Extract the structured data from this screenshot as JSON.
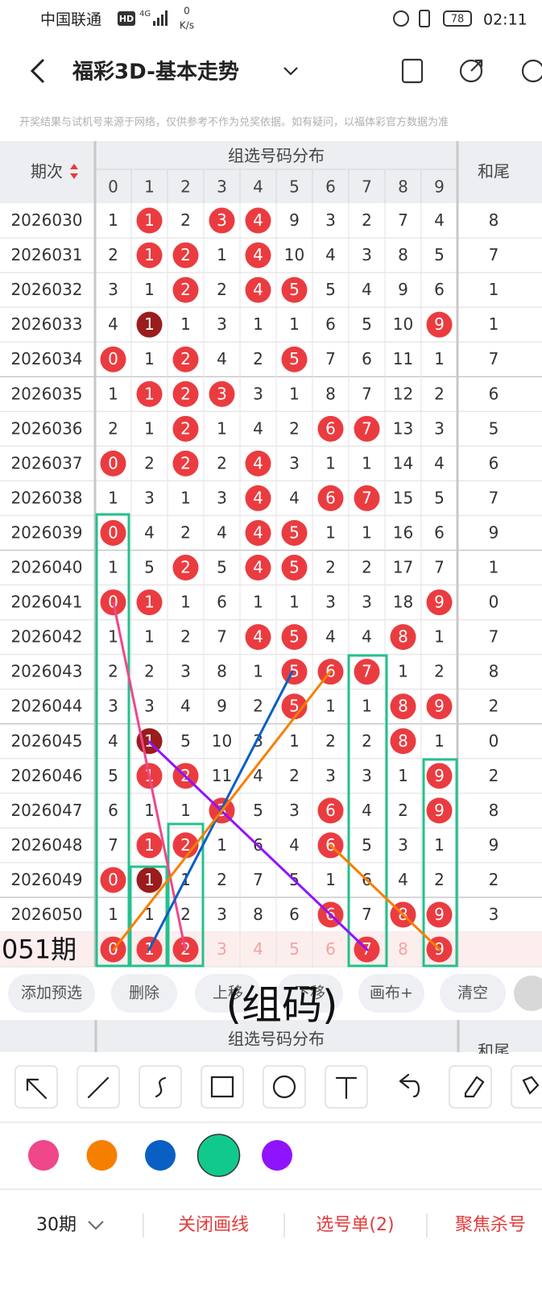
{
  "status_bar": {
    "carrier": "中国联通",
    "hd": "HD",
    "net": "4G",
    "speed": "0",
    "speed_unit": "K/s",
    "battery": "78",
    "time": "02:11"
  },
  "header": {
    "title": "福彩3D-基本走势"
  },
  "notice": "开奖结果与试机号来源于网络，仅供参考不作为兑奖依据。如有疑问，以福体彩官方数据为准",
  "table": {
    "period_header": "期次",
    "distribution_header": "组选号码分布",
    "sum_header": "和尾",
    "digit_headers": [
      0,
      1,
      2,
      3,
      4,
      5,
      6,
      7,
      8,
      9
    ],
    "rows": [
      {
        "period": "2026030",
        "cells": [
          1,
          1,
          2,
          3,
          4,
          9,
          3,
          2,
          7,
          4
        ],
        "balls": [
          1,
          3,
          4
        ],
        "dark": [],
        "sum": 8
      },
      {
        "period": "2026031",
        "cells": [
          2,
          1,
          2,
          1,
          4,
          10,
          4,
          3,
          8,
          5
        ],
        "balls": [
          1,
          2,
          4
        ],
        "dark": [],
        "sum": 7
      },
      {
        "period": "2026032",
        "cells": [
          3,
          1,
          2,
          2,
          4,
          5,
          5,
          4,
          9,
          6
        ],
        "balls": [
          2,
          4,
          5
        ],
        "dark": [],
        "sum": 1
      },
      {
        "period": "2026033",
        "cells": [
          4,
          1,
          1,
          3,
          1,
          1,
          6,
          5,
          10,
          9
        ],
        "balls": [
          1,
          9
        ],
        "dark": [
          1
        ],
        "sum": 1
      },
      {
        "period": "2026034",
        "cells": [
          0,
          1,
          2,
          4,
          2,
          5,
          7,
          6,
          11,
          1
        ],
        "balls": [
          0,
          2,
          5
        ],
        "dark": [],
        "sum": 7
      },
      {
        "period": "2026035",
        "cells": [
          1,
          1,
          2,
          3,
          3,
          1,
          8,
          7,
          12,
          2
        ],
        "balls": [
          1,
          2,
          3
        ],
        "dark": [],
        "sum": 6
      },
      {
        "period": "2026036",
        "cells": [
          2,
          1,
          2,
          1,
          4,
          2,
          6,
          7,
          13,
          3
        ],
        "balls": [
          2,
          6,
          7
        ],
        "dark": [],
        "sum": 5
      },
      {
        "period": "2026037",
        "cells": [
          0,
          2,
          2,
          2,
          4,
          3,
          1,
          1,
          14,
          4
        ],
        "balls": [
          0,
          2,
          4
        ],
        "dark": [],
        "sum": 6
      },
      {
        "period": "2026038",
        "cells": [
          1,
          3,
          1,
          3,
          4,
          4,
          6,
          7,
          15,
          5
        ],
        "balls": [
          4,
          6,
          7
        ],
        "dark": [],
        "sum": 7
      },
      {
        "period": "2026039",
        "cells": [
          0,
          4,
          2,
          4,
          4,
          5,
          1,
          1,
          16,
          6
        ],
        "balls": [
          0,
          4,
          5
        ],
        "dark": [],
        "sum": 9
      },
      {
        "period": "2026040",
        "cells": [
          1,
          5,
          2,
          5,
          4,
          5,
          2,
          2,
          17,
          7
        ],
        "balls": [
          2,
          4,
          5
        ],
        "dark": [],
        "sum": 1
      },
      {
        "period": "2026041",
        "cells": [
          0,
          1,
          1,
          6,
          1,
          1,
          3,
          3,
          18,
          9
        ],
        "balls": [
          0,
          1,
          9
        ],
        "dark": [],
        "sum": 0
      },
      {
        "period": "2026042",
        "cells": [
          1,
          1,
          2,
          7,
          4,
          5,
          4,
          4,
          8,
          1
        ],
        "balls": [
          4,
          5,
          8
        ],
        "dark": [],
        "sum": 7
      },
      {
        "period": "2026043",
        "cells": [
          2,
          2,
          3,
          8,
          1,
          5,
          6,
          7,
          1,
          2
        ],
        "balls": [
          5,
          6,
          7
        ],
        "dark": [],
        "sum": 8
      },
      {
        "period": "2026044",
        "cells": [
          3,
          3,
          4,
          9,
          2,
          5,
          1,
          1,
          8,
          9
        ],
        "balls": [
          5,
          8,
          9
        ],
        "dark": [],
        "sum": 2
      },
      {
        "period": "2026045",
        "cells": [
          4,
          1,
          5,
          10,
          3,
          1,
          2,
          2,
          8,
          1
        ],
        "balls": [
          1,
          8
        ],
        "dark": [
          1
        ],
        "sum": 0
      },
      {
        "period": "2026046",
        "cells": [
          5,
          1,
          2,
          11,
          4,
          2,
          3,
          3,
          1,
          9
        ],
        "balls": [
          1,
          2,
          9
        ],
        "dark": [],
        "sum": 2
      },
      {
        "period": "2026047",
        "cells": [
          6,
          1,
          1,
          3,
          5,
          3,
          6,
          4,
          2,
          9
        ],
        "balls": [
          3,
          6,
          9
        ],
        "dark": [],
        "sum": 8
      },
      {
        "period": "2026048",
        "cells": [
          7,
          1,
          2,
          1,
          6,
          4,
          6,
          5,
          3,
          1
        ],
        "balls": [
          1,
          2,
          6
        ],
        "dark": [],
        "sum": 9
      },
      {
        "period": "2026049",
        "cells": [
          0,
          1,
          1,
          2,
          7,
          5,
          1,
          6,
          4,
          2
        ],
        "balls": [
          0,
          1
        ],
        "dark": [
          1
        ],
        "sum": 2
      },
      {
        "period": "2026050",
        "cells": [
          1,
          1,
          2,
          3,
          8,
          6,
          6,
          7,
          8,
          9
        ],
        "balls": [
          6,
          8,
          9
        ],
        "dark": [],
        "sum": 3
      }
    ],
    "current_row": {
      "label": "051期",
      "cells": [
        0,
        1,
        2,
        3,
        4,
        5,
        6,
        7,
        8,
        9
      ],
      "balls": [
        0,
        1,
        2,
        7,
        9
      ]
    }
  },
  "overlay_text": "(组码)",
  "buttons": [
    "添加预选",
    "删除",
    "上移",
    "下移",
    "画布+",
    "清空"
  ],
  "lower_header": {
    "distribution_header": "组选号码分布",
    "sum_header": "和尾"
  },
  "pen_colors": [
    "#f0468a",
    "#f77f00",
    "#0a5fc4",
    "#12c98d",
    "#9013fe"
  ],
  "selected_pen": 3,
  "bottom_bar": {
    "period_select": "30期",
    "close_lines": "关闭画线",
    "pick_list": "选号单(2)",
    "focus_kill": "聚焦杀号"
  }
}
